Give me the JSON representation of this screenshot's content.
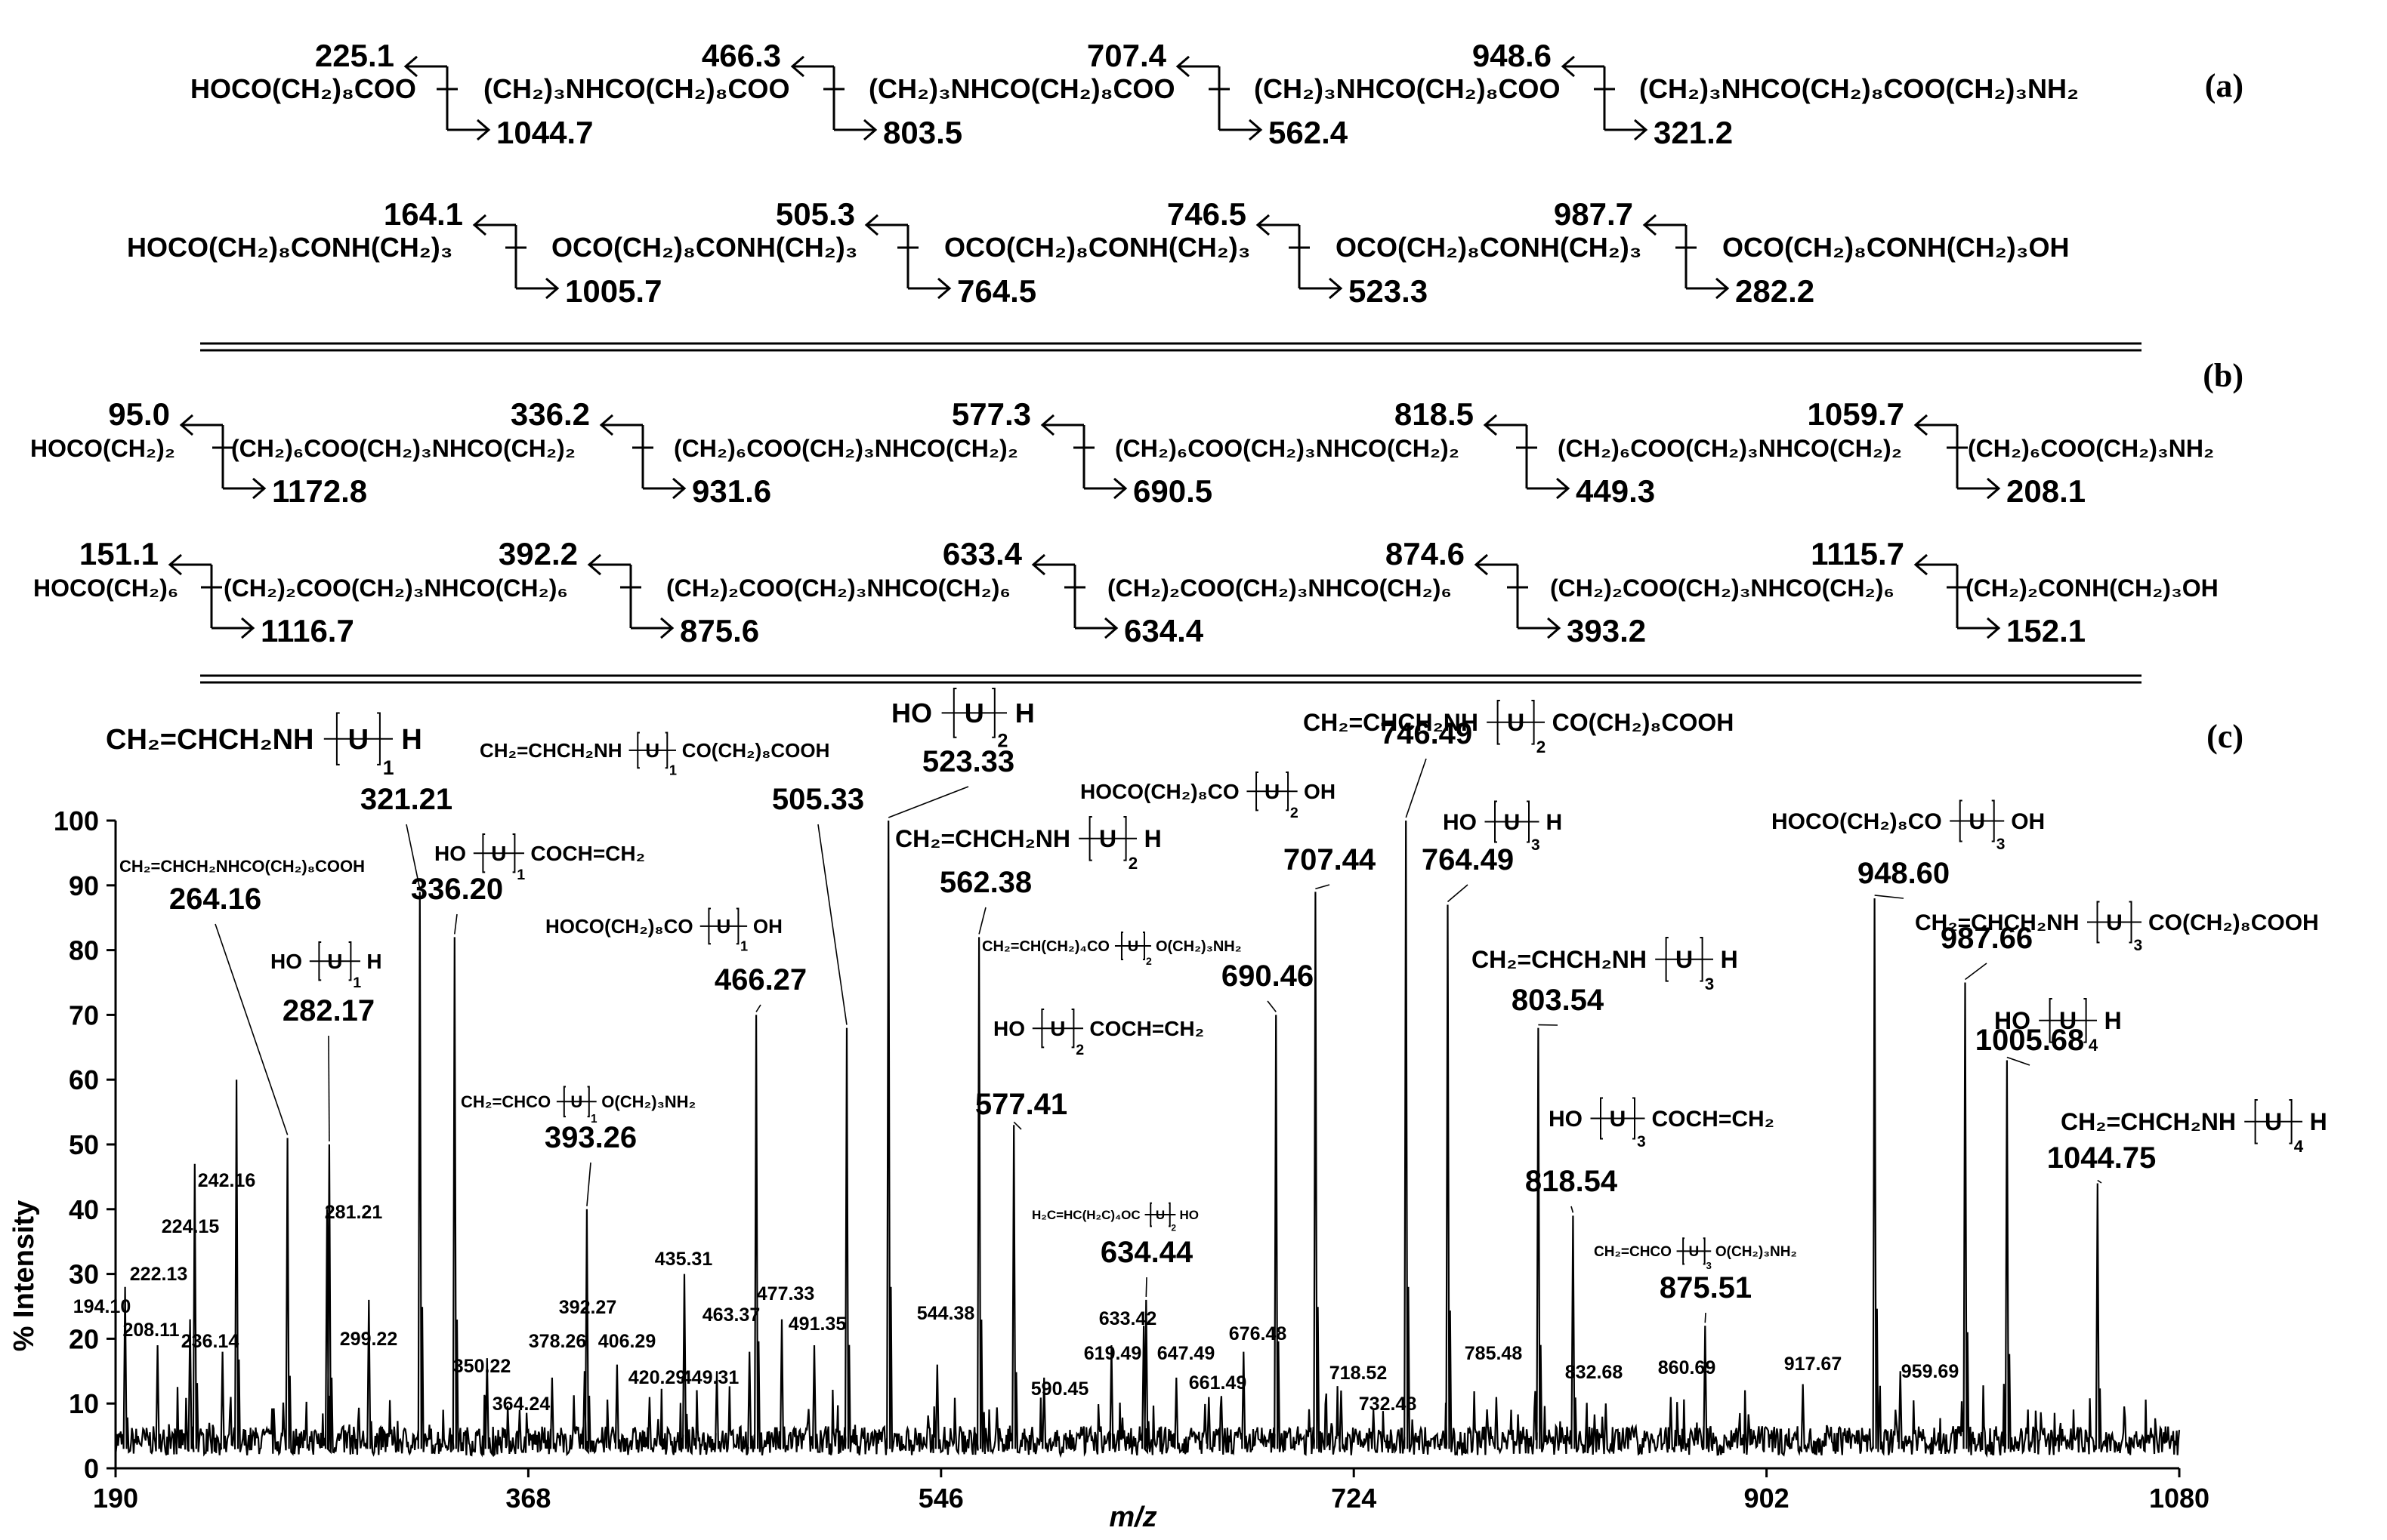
{
  "panel_labels": [
    "(a)",
    "(b)",
    "(c)"
  ],
  "fragment_rows": [
    {
      "segments": [
        "HOCO(CH₂)₈COO",
        "(CH₂)₃NHCO(CH₂)₈COO",
        "(CH₂)₃NHCO(CH₂)₈COO",
        "(CH₂)₃NHCO(CH₂)₈COO",
        "(CH₂)₃NHCO(CH₂)₈COO(CH₂)₃NH₂"
      ],
      "upper": [
        "225.1",
        "466.3",
        "707.4",
        "948.6"
      ],
      "lower": [
        "1044.7",
        "803.5",
        "562.4",
        "321.2"
      ]
    },
    {
      "segments": [
        "HOCO(CH₂)₈CONH(CH₂)₃",
        "OCO(CH₂)₈CONH(CH₂)₃",
        "OCO(CH₂)₈CONH(CH₂)₃",
        "OCO(CH₂)₈CONH(CH₂)₃",
        "OCO(CH₂)₈CONH(CH₂)₃OH"
      ],
      "upper": [
        "164.1",
        "505.3",
        "746.5",
        "987.7"
      ],
      "lower": [
        "1005.7",
        "764.5",
        "523.3",
        "282.2"
      ]
    },
    {
      "segments": [
        "HOCO(CH₂)₂",
        "(CH₂)₆COO(CH₂)₃NHCO(CH₂)₂",
        "(CH₂)₆COO(CH₂)₃NHCO(CH₂)₂",
        "(CH₂)₆COO(CH₂)₃NHCO(CH₂)₂",
        "(CH₂)₆COO(CH₂)₃NHCO(CH₂)₂",
        "(CH₂)₆COO(CH₂)₃NH₂"
      ],
      "upper": [
        "95.0",
        "336.2",
        "577.3",
        "818.5",
        "1059.7"
      ],
      "lower": [
        "1172.8",
        "931.6",
        "690.5",
        "449.3",
        "208.1"
      ]
    },
    {
      "segments": [
        "HOCO(CH₂)₆",
        "(CH₂)₂COO(CH₂)₃NHCO(CH₂)₆",
        "(CH₂)₂COO(CH₂)₃NHCO(CH₂)₆",
        "(CH₂)₂COO(CH₂)₃NHCO(CH₂)₆",
        "(CH₂)₂COO(CH₂)₃NHCO(CH₂)₆",
        "(CH₂)₂CONH(CH₂)₃OH"
      ],
      "upper": [
        "151.1",
        "392.2",
        "633.4",
        "874.6",
        "1115.7"
      ],
      "lower": [
        "1116.7",
        "875.6",
        "634.4",
        "393.2",
        "152.1"
      ]
    }
  ],
  "structures": [
    {
      "pre": "CH₂=CHCH₂NH",
      "n": "1",
      "post": "H"
    },
    {
      "pre": "CH₂=CHCH₂NH",
      "n": "1",
      "post": "CO(CH₂)₈COOH"
    },
    {
      "pre": "HO",
      "n": "2",
      "post": "H"
    },
    {
      "pre": "CH₂=CHCH₂NH",
      "n": "2",
      "post": "CO(CH₂)₈COOH"
    },
    {
      "text": "CH₂=CHCH₂NHCO(CH₂)₈COOH"
    },
    {
      "pre": "HO",
      "n": "1",
      "post": "COCH=CH₂"
    },
    {
      "pre": "HO",
      "n": "1",
      "post": "H"
    },
    {
      "pre": "HOCO(CH₂)₈CO",
      "n": "1",
      "post": "OH"
    },
    {
      "pre": "CH₂=CHCO",
      "n": "1",
      "post": "O(CH₂)₃NH₂"
    },
    {
      "pre": "HOCO(CH₂)₈CO",
      "n": "2",
      "post": "OH"
    },
    {
      "pre": "CH₂=CHCH₂NH",
      "n": "2",
      "post": "H"
    },
    {
      "pre": "CH₂=CH(CH₂)₄CO",
      "n": "2",
      "post": "O(CH₂)₃NH₂"
    },
    {
      "pre": "HO",
      "n": "2",
      "post": "COCH=CH₂"
    },
    {
      "pre": "H₂C=HC(H₂C)₄OC",
      "n": "2",
      "post": "HO"
    },
    {
      "pre": "HO",
      "n": "3",
      "post": "H"
    },
    {
      "pre": "CH₂=CHCH₂NH",
      "n": "3",
      "post": "H"
    },
    {
      "pre": "HO",
      "n": "3",
      "post": "COCH=CH₂"
    },
    {
      "pre": "CH₂=CHCO",
      "n": "3",
      "post": "O(CH₂)₃NH₂"
    },
    {
      "pre": "HOCO(CH₂)₈CO",
      "n": "3",
      "post": "OH"
    },
    {
      "pre": "CH₂=CHCH₂NH",
      "n": "3",
      "post": "CO(CH₂)₈COOH"
    },
    {
      "pre": "HO",
      "n": "4",
      "post": "H"
    },
    {
      "pre": "CH₂=CHCH₂NH",
      "n": "4",
      "post": "H"
    }
  ],
  "repeat_unit": "U",
  "chart_data": {
    "type": "line",
    "title": "",
    "xlabel": "m/z",
    "ylabel": "% Intensity",
    "xlim": [
      190,
      1080
    ],
    "ylim": [
      0,
      100
    ],
    "xticks": [
      190,
      368,
      546,
      724,
      902,
      1080
    ],
    "yticks": [
      0,
      10,
      20,
      30,
      40,
      50,
      60,
      70,
      80,
      90,
      100
    ],
    "peaks": [
      {
        "mz": 194.1,
        "label": "194.10",
        "intensity": 28
      },
      {
        "mz": 208.11,
        "label": "208.11",
        "intensity": 19
      },
      {
        "mz": 222.13,
        "label": "222.13",
        "intensity": 23
      },
      {
        "mz": 224.15,
        "label": "224.15",
        "intensity": 47
      },
      {
        "mz": 236.14,
        "label": "236.14",
        "intensity": 18
      },
      {
        "mz": 242.16,
        "label": "242.16",
        "intensity": 60
      },
      {
        "mz": 264.16,
        "label": "264.16",
        "intensity": 51
      },
      {
        "mz": 281.21,
        "label": "281.21",
        "intensity": 40
      },
      {
        "mz": 282.17,
        "label": "282.17",
        "intensity": 50
      },
      {
        "mz": 299.22,
        "label": "299.22",
        "intensity": 26
      },
      {
        "mz": 321.21,
        "label": "321.21",
        "intensity": 89
      },
      {
        "mz": 336.2,
        "label": "336.20",
        "intensity": 82
      },
      {
        "mz": 350.22,
        "label": "350.22",
        "intensity": 17
      },
      {
        "mz": 364.24,
        "label": "364.24",
        "intensity": 9
      },
      {
        "mz": 378.26,
        "label": "378.26",
        "intensity": 14
      },
      {
        "mz": 392.27,
        "label": "392.27",
        "intensity": 15
      },
      {
        "mz": 393.26,
        "label": "393.26",
        "intensity": 40
      },
      {
        "mz": 406.29,
        "label": "406.29",
        "intensity": 16
      },
      {
        "mz": 420.29,
        "label": "420.29",
        "intensity": 11
      },
      {
        "mz": 435.31,
        "label": "435.31",
        "intensity": 30
      },
      {
        "mz": 449.31,
        "label": "449.31",
        "intensity": 15
      },
      {
        "mz": 463.37,
        "label": "463.37",
        "intensity": 18
      },
      {
        "mz": 466.27,
        "label": "466.27",
        "intensity": 70
      },
      {
        "mz": 477.33,
        "label": "477.33",
        "intensity": 23
      },
      {
        "mz": 491.35,
        "label": "491.35",
        "intensity": 19
      },
      {
        "mz": 505.33,
        "label": "505.33",
        "intensity": 68
      },
      {
        "mz": 523.33,
        "label": "523.33",
        "intensity": 100
      },
      {
        "mz": 544.38,
        "label": "544.38",
        "intensity": 16
      },
      {
        "mz": 562.38,
        "label": "562.38",
        "intensity": 82
      },
      {
        "mz": 577.41,
        "label": "577.41",
        "intensity": 53
      },
      {
        "mz": 590.45,
        "label": "590.45",
        "intensity": 14
      },
      {
        "mz": 619.49,
        "label": "619.49",
        "intensity": 19
      },
      {
        "mz": 633.42,
        "label": "633.42",
        "intensity": 22
      },
      {
        "mz": 634.44,
        "label": "634.44",
        "intensity": 26
      },
      {
        "mz": 647.49,
        "label": "647.49",
        "intensity": 14
      },
      {
        "mz": 661.49,
        "label": "661.49",
        "intensity": 11
      },
      {
        "mz": 676.48,
        "label": "676.48",
        "intensity": 18
      },
      {
        "mz": 690.46,
        "label": "690.46",
        "intensity": 70
      },
      {
        "mz": 707.44,
        "label": "707.44",
        "intensity": 89
      },
      {
        "mz": 718.52,
        "label": "718.52",
        "intensity": 12
      },
      {
        "mz": 732.48,
        "label": "732.48",
        "intensity": 9
      },
      {
        "mz": 746.49,
        "label": "746.49",
        "intensity": 100
      },
      {
        "mz": 764.49,
        "label": "764.49",
        "intensity": 87
      },
      {
        "mz": 785.48,
        "label": "785.48",
        "intensity": 11
      },
      {
        "mz": 803.54,
        "label": "803.54",
        "intensity": 68
      },
      {
        "mz": 818.54,
        "label": "818.54",
        "intensity": 39
      },
      {
        "mz": 832.68,
        "label": "832.68",
        "intensity": 10
      },
      {
        "mz": 860.69,
        "label": "860.69",
        "intensity": 11
      },
      {
        "mz": 875.51,
        "label": "875.51",
        "intensity": 22
      },
      {
        "mz": 917.67,
        "label": "917.67",
        "intensity": 13
      },
      {
        "mz": 948.6,
        "label": "948.60",
        "intensity": 88
      },
      {
        "mz": 959.69,
        "label": "959.69",
        "intensity": 15
      },
      {
        "mz": 987.66,
        "label": "987.66",
        "intensity": 75
      },
      {
        "mz": 1005.68,
        "label": "1005.68",
        "intensity": 63
      },
      {
        "mz": 1044.75,
        "label": "1044.75",
        "intensity": 44
      }
    ]
  }
}
